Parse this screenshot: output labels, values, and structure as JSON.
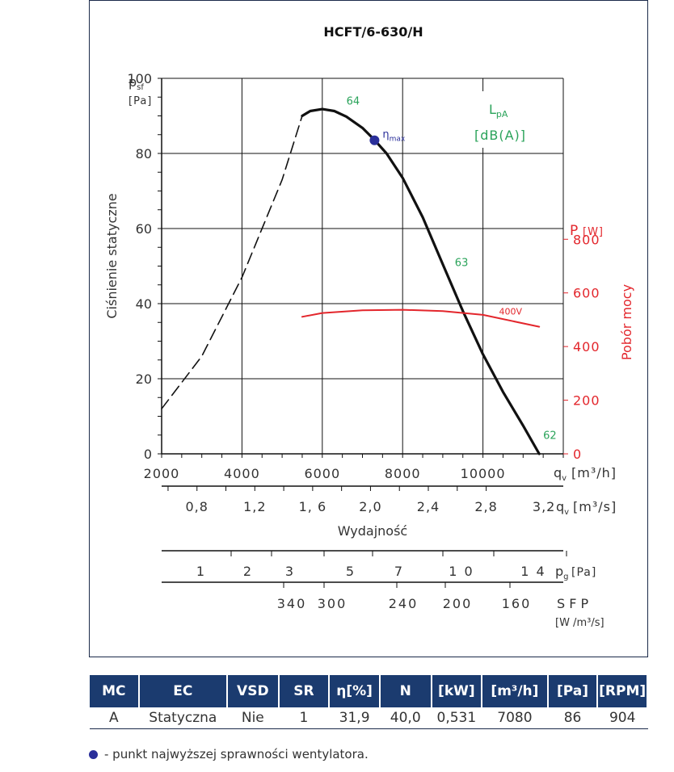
{
  "chart_data": {
    "type": "line",
    "title": "HCFT/6-630/H",
    "ylabel": "Ciśnienie statyczne",
    "ylabel_symbol": "p",
    "ylabel_sub": "sf",
    "yunit": "[Pa]",
    "ylim": [
      0,
      100
    ],
    "yticks": [
      0,
      20,
      40,
      60,
      80,
      100
    ],
    "xlim": [
      2000,
      12000
    ],
    "xticks": [
      2000,
      4000,
      6000,
      8000,
      10000
    ],
    "xlabel_symbol": "q",
    "xlabel_sub": "v",
    "xunit": "[m³/h]",
    "x2_ticks": [
      "0,8",
      "1,2",
      "1, 6",
      "2,0",
      "2,4",
      "2,8",
      "3,2"
    ],
    "x2_ticks_values": [
      0.8,
      1.2,
      1.6,
      2.0,
      2.4,
      2.8,
      3.2
    ],
    "x2_unit": "[m³/s]",
    "xlabel": "Wydajność",
    "y2label": "Pobór mocy",
    "y2unit_symbol": "P",
    "y2unit": "[W]",
    "y2lim": [
      0,
      1400
    ],
    "y2ticks": [
      0,
      200,
      400,
      600,
      800
    ],
    "lpa_label_top": "L",
    "lpa_label_sub": "pA",
    "lpa_unit": "[dB(A)]",
    "series": [
      {
        "name": "pressure-stable",
        "color": "#111111",
        "x": [
          5500,
          5700,
          6000,
          6300,
          6600,
          7000,
          7300,
          7600,
          8000,
          8500,
          9000,
          9500,
          10000,
          10500,
          11000,
          11400
        ],
        "y": [
          90,
          91.3,
          91.8,
          91.3,
          89.8,
          86.8,
          83.6,
          80.0,
          73.5,
          63.0,
          50.5,
          38.0,
          26.5,
          16.5,
          7.5,
          0
        ]
      },
      {
        "name": "pressure-unstable",
        "color": "#111111",
        "dashed": true,
        "x": [
          2000,
          3000,
          4000,
          5000,
          5500
        ],
        "y": [
          12,
          26,
          47,
          73,
          90
        ]
      },
      {
        "name": "400V",
        "color": "#e3262c",
        "axis": "right",
        "x": [
          5500,
          6000,
          7000,
          8000,
          9000,
          10000,
          11400
        ],
        "y": [
          511,
          525,
          535,
          537,
          532,
          518,
          474
        ]
      }
    ],
    "series_label": "400V",
    "eta_max": {
      "label": "η",
      "sub": "max",
      "x": 7300,
      "y": 83.5,
      "color": "#2a2f9a"
    },
    "lpa_labels": [
      {
        "text": "64",
        "x": 6600,
        "y": 93
      },
      {
        "text": "63",
        "x": 9300,
        "y": 50
      },
      {
        "text": "62",
        "x": 11500,
        "y": 4
      }
    ],
    "pg_scale": {
      "values": [
        "1",
        "2",
        "3",
        "5",
        "7",
        "1 0",
        "1 4"
      ],
      "label": "p",
      "sub": "g",
      "unit": "[Pa]"
    },
    "sfp_scale": {
      "values": [
        "340",
        "300",
        "240",
        "200",
        "160"
      ],
      "label": "S F P",
      "unit": "[W /m³/s]"
    },
    "grid": true
  },
  "table": {
    "headers": [
      "MC",
      "EC",
      "VSD",
      "SR",
      "η[%]",
      "N",
      "[kW]",
      "[m³/h]",
      "[Pa]",
      "[RPM]"
    ],
    "row": [
      "A",
      "Statyczna",
      "Nie",
      "1",
      "31,9",
      "40,0",
      "0,531",
      "7080",
      "86",
      "904"
    ]
  },
  "footnote": "- punkt najwyższej sprawności wentylatora."
}
